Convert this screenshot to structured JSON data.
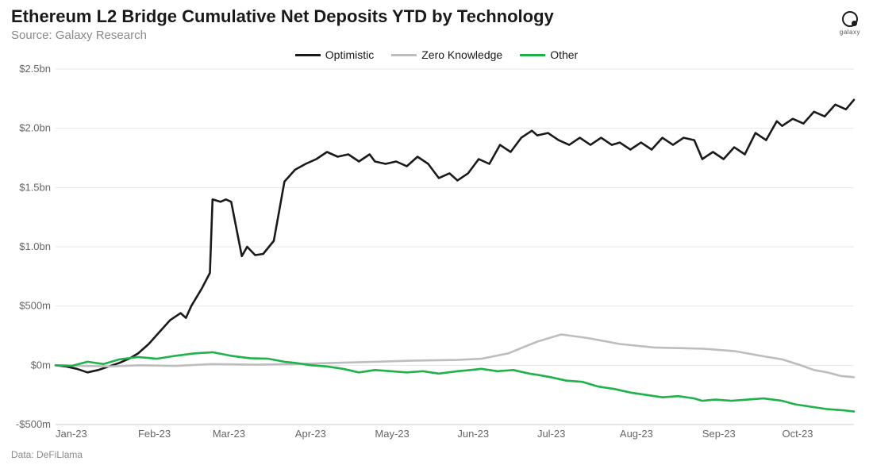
{
  "title": "Ethereum L2 Bridge Cumulative Net Deposits YTD by Technology",
  "subtitle": "Source: Galaxy Research",
  "logo_text": "galaxy",
  "credit": "Data: DeFiLlama",
  "chart": {
    "type": "line",
    "background_color": "#ffffff",
    "grid_color": "#e7e7e7",
    "axis_text_color": "#666666",
    "xlim": [
      0,
      300
    ],
    "ylim": [
      -500,
      2500
    ],
    "ytick_step": 500,
    "ytick_labels": [
      "-$500m",
      "$0m",
      "$500m",
      "$1.0bn",
      "$1.5bn",
      "$2.0bn",
      "$2.5bn"
    ],
    "xticks": [
      0,
      31,
      59,
      90,
      120,
      151,
      181,
      212,
      243,
      273
    ],
    "xtick_labels": [
      "Jan-23",
      "Feb-23",
      "Mar-23",
      "Apr-23",
      "May-23",
      "Jun-23",
      "Jul-23",
      "Aug-23",
      "Sep-23",
      "Oct-23"
    ],
    "axis_fontsize": 13,
    "line_width": 2.6,
    "legend": {
      "position": "top-center",
      "fontsize": 14,
      "items": [
        {
          "label": "Optimistic",
          "color": "#1a1a1a"
        },
        {
          "label": "Zero Knowledge",
          "color": "#bdbdbd"
        },
        {
          "label": "Other",
          "color": "#1fb24a"
        }
      ]
    },
    "series": [
      {
        "name": "Optimistic",
        "color": "#1a1a1a",
        "points": [
          [
            0,
            0
          ],
          [
            4,
            -10
          ],
          [
            8,
            -30
          ],
          [
            12,
            -60
          ],
          [
            16,
            -40
          ],
          [
            20,
            -10
          ],
          [
            24,
            20
          ],
          [
            28,
            60
          ],
          [
            31,
            100
          ],
          [
            35,
            180
          ],
          [
            39,
            280
          ],
          [
            43,
            380
          ],
          [
            47,
            440
          ],
          [
            49,
            400
          ],
          [
            51,
            500
          ],
          [
            55,
            650
          ],
          [
            58,
            780
          ],
          [
            59,
            1400
          ],
          [
            62,
            1380
          ],
          [
            64,
            1400
          ],
          [
            66,
            1380
          ],
          [
            70,
            920
          ],
          [
            72,
            1000
          ],
          [
            75,
            930
          ],
          [
            78,
            940
          ],
          [
            82,
            1050
          ],
          [
            86,
            1550
          ],
          [
            90,
            1650
          ],
          [
            94,
            1700
          ],
          [
            98,
            1740
          ],
          [
            102,
            1800
          ],
          [
            106,
            1760
          ],
          [
            110,
            1780
          ],
          [
            114,
            1720
          ],
          [
            118,
            1780
          ],
          [
            120,
            1720
          ],
          [
            124,
            1700
          ],
          [
            128,
            1720
          ],
          [
            132,
            1680
          ],
          [
            136,
            1760
          ],
          [
            140,
            1700
          ],
          [
            144,
            1580
          ],
          [
            148,
            1620
          ],
          [
            151,
            1560
          ],
          [
            155,
            1620
          ],
          [
            159,
            1740
          ],
          [
            163,
            1700
          ],
          [
            167,
            1860
          ],
          [
            171,
            1800
          ],
          [
            175,
            1920
          ],
          [
            179,
            1980
          ],
          [
            181,
            1940
          ],
          [
            185,
            1960
          ],
          [
            189,
            1900
          ],
          [
            193,
            1860
          ],
          [
            197,
            1920
          ],
          [
            201,
            1860
          ],
          [
            205,
            1920
          ],
          [
            209,
            1860
          ],
          [
            212,
            1880
          ],
          [
            216,
            1820
          ],
          [
            220,
            1880
          ],
          [
            224,
            1820
          ],
          [
            228,
            1920
          ],
          [
            232,
            1860
          ],
          [
            236,
            1920
          ],
          [
            240,
            1900
          ],
          [
            243,
            1740
          ],
          [
            247,
            1800
          ],
          [
            251,
            1740
          ],
          [
            255,
            1840
          ],
          [
            259,
            1780
          ],
          [
            263,
            1960
          ],
          [
            267,
            1900
          ],
          [
            271,
            2060
          ],
          [
            273,
            2020
          ],
          [
            277,
            2080
          ],
          [
            281,
            2040
          ],
          [
            285,
            2140
          ],
          [
            289,
            2100
          ],
          [
            293,
            2200
          ],
          [
            297,
            2160
          ],
          [
            300,
            2240
          ]
        ]
      },
      {
        "name": "Zero Knowledge",
        "color": "#bdbdbd",
        "points": [
          [
            0,
            0
          ],
          [
            10,
            -5
          ],
          [
            20,
            -10
          ],
          [
            31,
            0
          ],
          [
            45,
            -5
          ],
          [
            59,
            10
          ],
          [
            75,
            5
          ],
          [
            90,
            10
          ],
          [
            105,
            20
          ],
          [
            120,
            30
          ],
          [
            135,
            40
          ],
          [
            151,
            45
          ],
          [
            160,
            55
          ],
          [
            170,
            100
          ],
          [
            181,
            200
          ],
          [
            190,
            260
          ],
          [
            200,
            230
          ],
          [
            212,
            180
          ],
          [
            225,
            150
          ],
          [
            243,
            140
          ],
          [
            255,
            120
          ],
          [
            265,
            80
          ],
          [
            273,
            50
          ],
          [
            280,
            0
          ],
          [
            285,
            -40
          ],
          [
            290,
            -60
          ],
          [
            295,
            -90
          ],
          [
            300,
            -100
          ]
        ]
      },
      {
        "name": "Other",
        "color": "#1fb24a",
        "points": [
          [
            0,
            0
          ],
          [
            6,
            -5
          ],
          [
            12,
            30
          ],
          [
            18,
            10
          ],
          [
            24,
            50
          ],
          [
            31,
            70
          ],
          [
            38,
            55
          ],
          [
            45,
            80
          ],
          [
            52,
            100
          ],
          [
            59,
            110
          ],
          [
            66,
            80
          ],
          [
            73,
            60
          ],
          [
            80,
            55
          ],
          [
            86,
            30
          ],
          [
            90,
            20
          ],
          [
            96,
            0
          ],
          [
            102,
            -10
          ],
          [
            108,
            -30
          ],
          [
            114,
            -60
          ],
          [
            120,
            -40
          ],
          [
            126,
            -50
          ],
          [
            132,
            -60
          ],
          [
            138,
            -50
          ],
          [
            144,
            -70
          ],
          [
            151,
            -50
          ],
          [
            156,
            -40
          ],
          [
            160,
            -30
          ],
          [
            166,
            -50
          ],
          [
            172,
            -40
          ],
          [
            178,
            -70
          ],
          [
            181,
            -80
          ],
          [
            186,
            -100
          ],
          [
            192,
            -130
          ],
          [
            198,
            -140
          ],
          [
            204,
            -180
          ],
          [
            210,
            -200
          ],
          [
            216,
            -230
          ],
          [
            222,
            -250
          ],
          [
            228,
            -270
          ],
          [
            234,
            -260
          ],
          [
            240,
            -280
          ],
          [
            243,
            -300
          ],
          [
            248,
            -290
          ],
          [
            254,
            -300
          ],
          [
            260,
            -290
          ],
          [
            266,
            -280
          ],
          [
            273,
            -300
          ],
          [
            278,
            -330
          ],
          [
            284,
            -350
          ],
          [
            290,
            -370
          ],
          [
            296,
            -380
          ],
          [
            300,
            -390
          ]
        ]
      }
    ]
  }
}
